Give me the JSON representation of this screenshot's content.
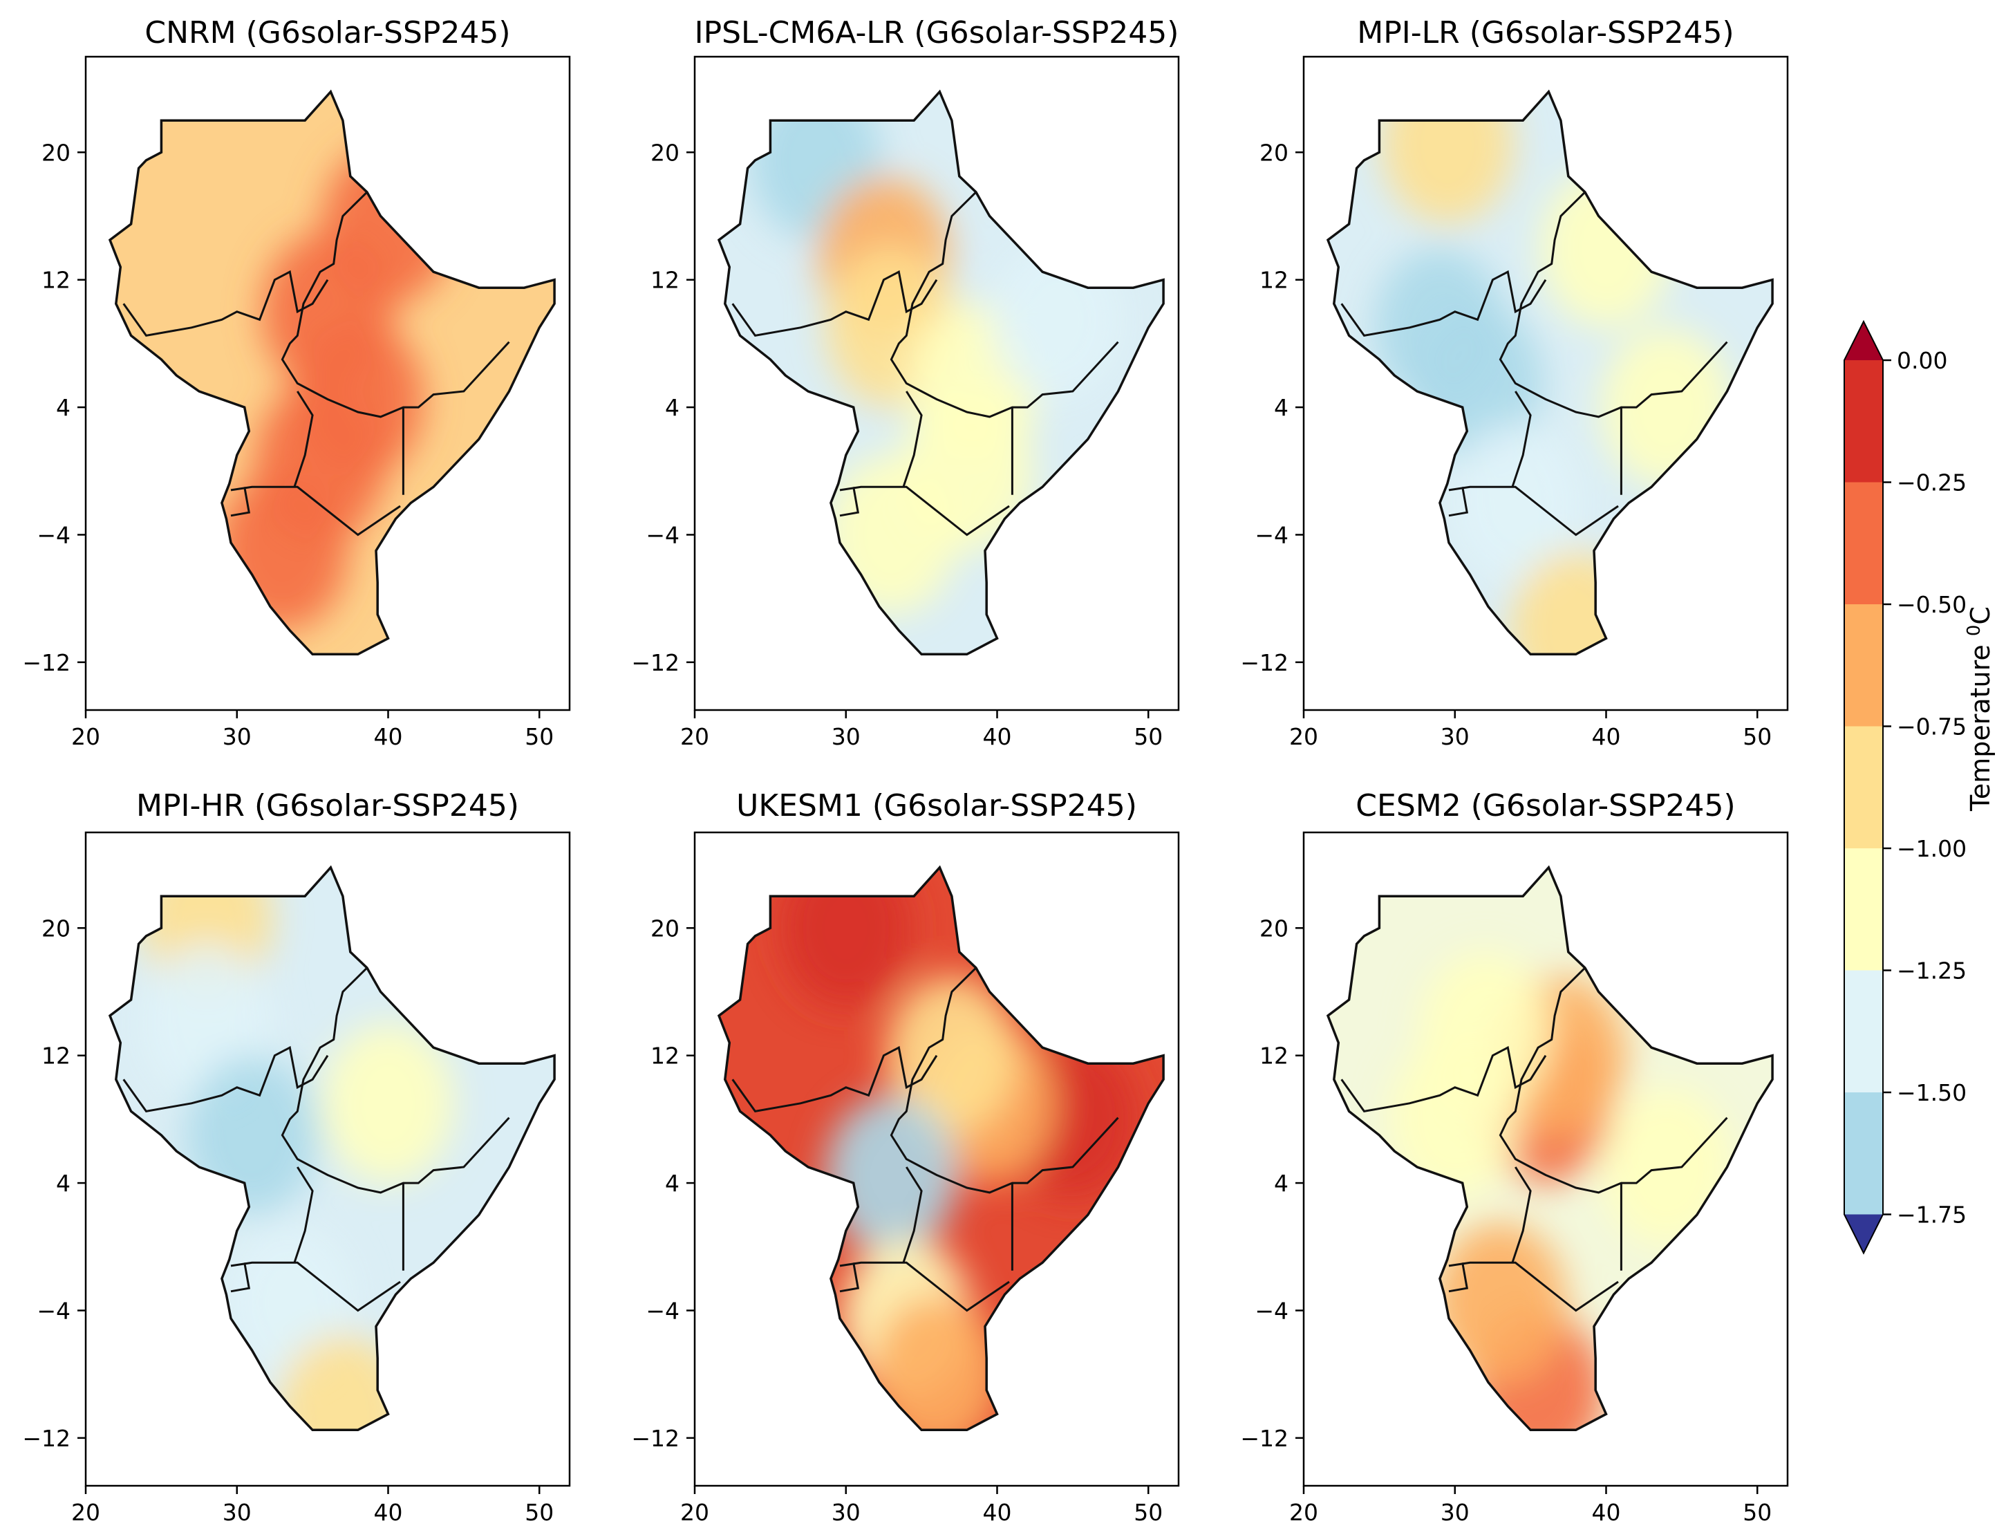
{
  "figure": {
    "panels": [
      {
        "title": "CNRM (G6solar-SSP245)",
        "fill": [
          "#fdd08a",
          "#f9a45f",
          "#fed894",
          "#fbbf75"
        ],
        "accents": [
          [
            40.0,
            15.5,
            0.4
          ],
          [
            36.0,
            10.0,
            0.45
          ],
          [
            38.0,
            4.5,
            0.4
          ],
          [
            35.5,
            0.5,
            0.4
          ],
          [
            33.0,
            -5.0,
            0.45
          ]
        ]
      },
      {
        "title": "IPSL-CM6A-LR (G6solar-SSP245)",
        "fill": [
          "#dbeef5",
          "#b5d6ea",
          "#f7f9c9",
          "#fdc47f"
        ],
        "accents": [
          [
            28.0,
            19.5,
            1.65
          ],
          [
            32.5,
            13.5,
            0.7
          ],
          [
            33.0,
            9.0,
            0.85
          ],
          [
            38.5,
            5.5,
            1.1
          ],
          [
            44.0,
            9.5,
            1.3
          ],
          [
            38.0,
            0.0,
            1.15
          ],
          [
            33.0,
            -4.0,
            1.2
          ]
        ]
      },
      {
        "title": "MPI-LR (G6solar-SSP245)",
        "fill": [
          "#dbeef5",
          "#b5d6ea",
          "#fff3b0",
          "#6ba0cd"
        ],
        "accents": [
          [
            29.5,
            20.5,
            0.8
          ],
          [
            29.0,
            9.0,
            1.6
          ],
          [
            31.5,
            5.5,
            1.55
          ],
          [
            34.0,
            -2.0,
            1.3
          ],
          [
            38.0,
            -10.0,
            0.85
          ],
          [
            44.0,
            4.0,
            1.05
          ],
          [
            40.0,
            14.0,
            1.1
          ]
        ]
      },
      {
        "title": "MPI-HR (G6solar-SSP245)",
        "fill": [
          "#dbeef5",
          "#b5d6ea",
          "#fff3b0",
          "#6ba0cd"
        ],
        "accents": [
          [
            28.0,
            20.5,
            0.9
          ],
          [
            28.0,
            14.0,
            1.3
          ],
          [
            31.0,
            7.0,
            1.7
          ],
          [
            33.5,
            -3.5,
            1.45
          ],
          [
            37.0,
            -10.5,
            0.8
          ],
          [
            40.0,
            9.0,
            1.15
          ]
        ]
      },
      {
        "title": "UKESM1 (G6solar-SSP245)",
        "fill": [
          "#e34a33",
          "#f26b42",
          "#d42f2e",
          "#fdae61"
        ],
        "accents": [
          [
            30.0,
            20.0,
            0.05
          ],
          [
            45.0,
            8.0,
            0.15
          ],
          [
            39.5,
            9.0,
            0.6
          ],
          [
            37.0,
            12.0,
            0.95
          ],
          [
            33.0,
            4.5,
            1.6
          ],
          [
            34.0,
            -4.5,
            1.05
          ],
          [
            36.0,
            -8.0,
            0.65
          ]
        ]
      },
      {
        "title": "CESM2 (G6solar-SSP245)",
        "fill": [
          "#f3f8dc",
          "#dbeef5",
          "#fffbc8",
          "#fdd08a"
        ],
        "accents": [
          [
            36.0,
            9.0,
            0.3
          ],
          [
            37.0,
            12.0,
            0.6
          ],
          [
            35.5,
            -9.0,
            0.35
          ],
          [
            33.0,
            -3.5,
            0.6
          ],
          [
            32.0,
            13.5,
            1.2
          ],
          [
            30.0,
            8.0,
            1.1
          ],
          [
            44.0,
            5.0,
            1.0
          ]
        ]
      }
    ],
    "x_ticks": [
      "20",
      "30",
      "40",
      "50"
    ],
    "y_ticks": [
      "20",
      "12",
      "4",
      "−4",
      "−12"
    ],
    "xlim": [
      20,
      52
    ],
    "ylim": [
      -15,
      26
    ]
  },
  "colorbar": {
    "label_main": "Temperature ",
    "label_sup": "0",
    "label_unit": "C",
    "ticks": [
      "0.00",
      "−0.25",
      "−0.50",
      "−0.75",
      "−1.00",
      "−1.25",
      "−1.50",
      "−1.75"
    ],
    "colors": [
      "#a50026",
      "#d73027",
      "#f46d43",
      "#fdae61",
      "#fee090",
      "#ffffbf",
      "#e0f3f8",
      "#abd9e9",
      "#74add1",
      "#4575b4",
      "#313695"
    ]
  }
}
